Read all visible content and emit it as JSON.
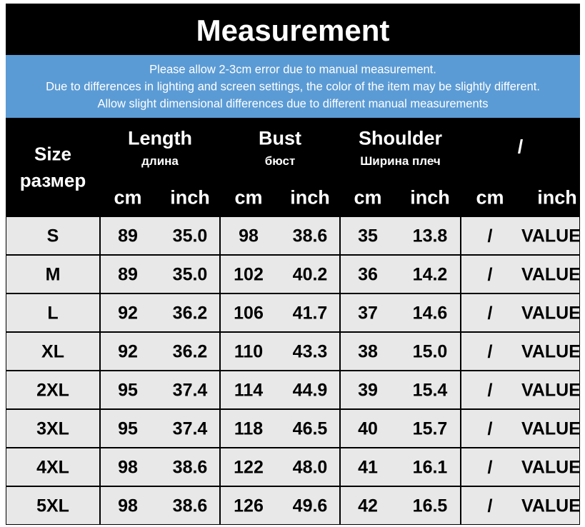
{
  "title": "Measurement",
  "notes": [
    "Please allow 2-3cm error due to manual measurement.",
    "Due to differences in lighting and screen settings, the color of the item may be slightly different.",
    "Allow slight dimensional differences due to different manual measurements"
  ],
  "header": {
    "size": "Size",
    "size_sub": "размер",
    "groups": [
      {
        "name": "Length",
        "sub": "длина",
        "units": [
          "cm",
          "inch"
        ]
      },
      {
        "name": "Bust",
        "sub": "бюст",
        "units": [
          "cm",
          "inch"
        ]
      },
      {
        "name": "Shoulder",
        "sub": "Ширина плеч",
        "units": [
          "cm",
          "inch"
        ]
      },
      {
        "name": "/",
        "units": [
          "cm",
          "inch"
        ]
      }
    ]
  },
  "table": {
    "rows": [
      [
        "S",
        "89",
        "35.0",
        "98",
        "38.6",
        "35",
        "13.8",
        "/",
        "VALUE"
      ],
      [
        "M",
        "89",
        "35.0",
        "102",
        "40.2",
        "36",
        "14.2",
        "/",
        "VALUE"
      ],
      [
        "L",
        "92",
        "36.2",
        "106",
        "41.7",
        "37",
        "14.6",
        "/",
        "VALUE"
      ],
      [
        "XL",
        "92",
        "36.2",
        "110",
        "43.3",
        "38",
        "15.0",
        "/",
        "VALUE"
      ],
      [
        "2XL",
        "95",
        "37.4",
        "114",
        "44.9",
        "39",
        "15.4",
        "/",
        "VALUE"
      ],
      [
        "3XL",
        "95",
        "37.4",
        "118",
        "46.5",
        "40",
        "15.7",
        "/",
        "VALUE"
      ],
      [
        "4XL",
        "98",
        "38.6",
        "122",
        "48.0",
        "41",
        "16.1",
        "/",
        "VALUE"
      ],
      [
        "5XL",
        "98",
        "38.6",
        "126",
        "49.6",
        "42",
        "16.5",
        "/",
        "VALUE"
      ]
    ]
  }
}
